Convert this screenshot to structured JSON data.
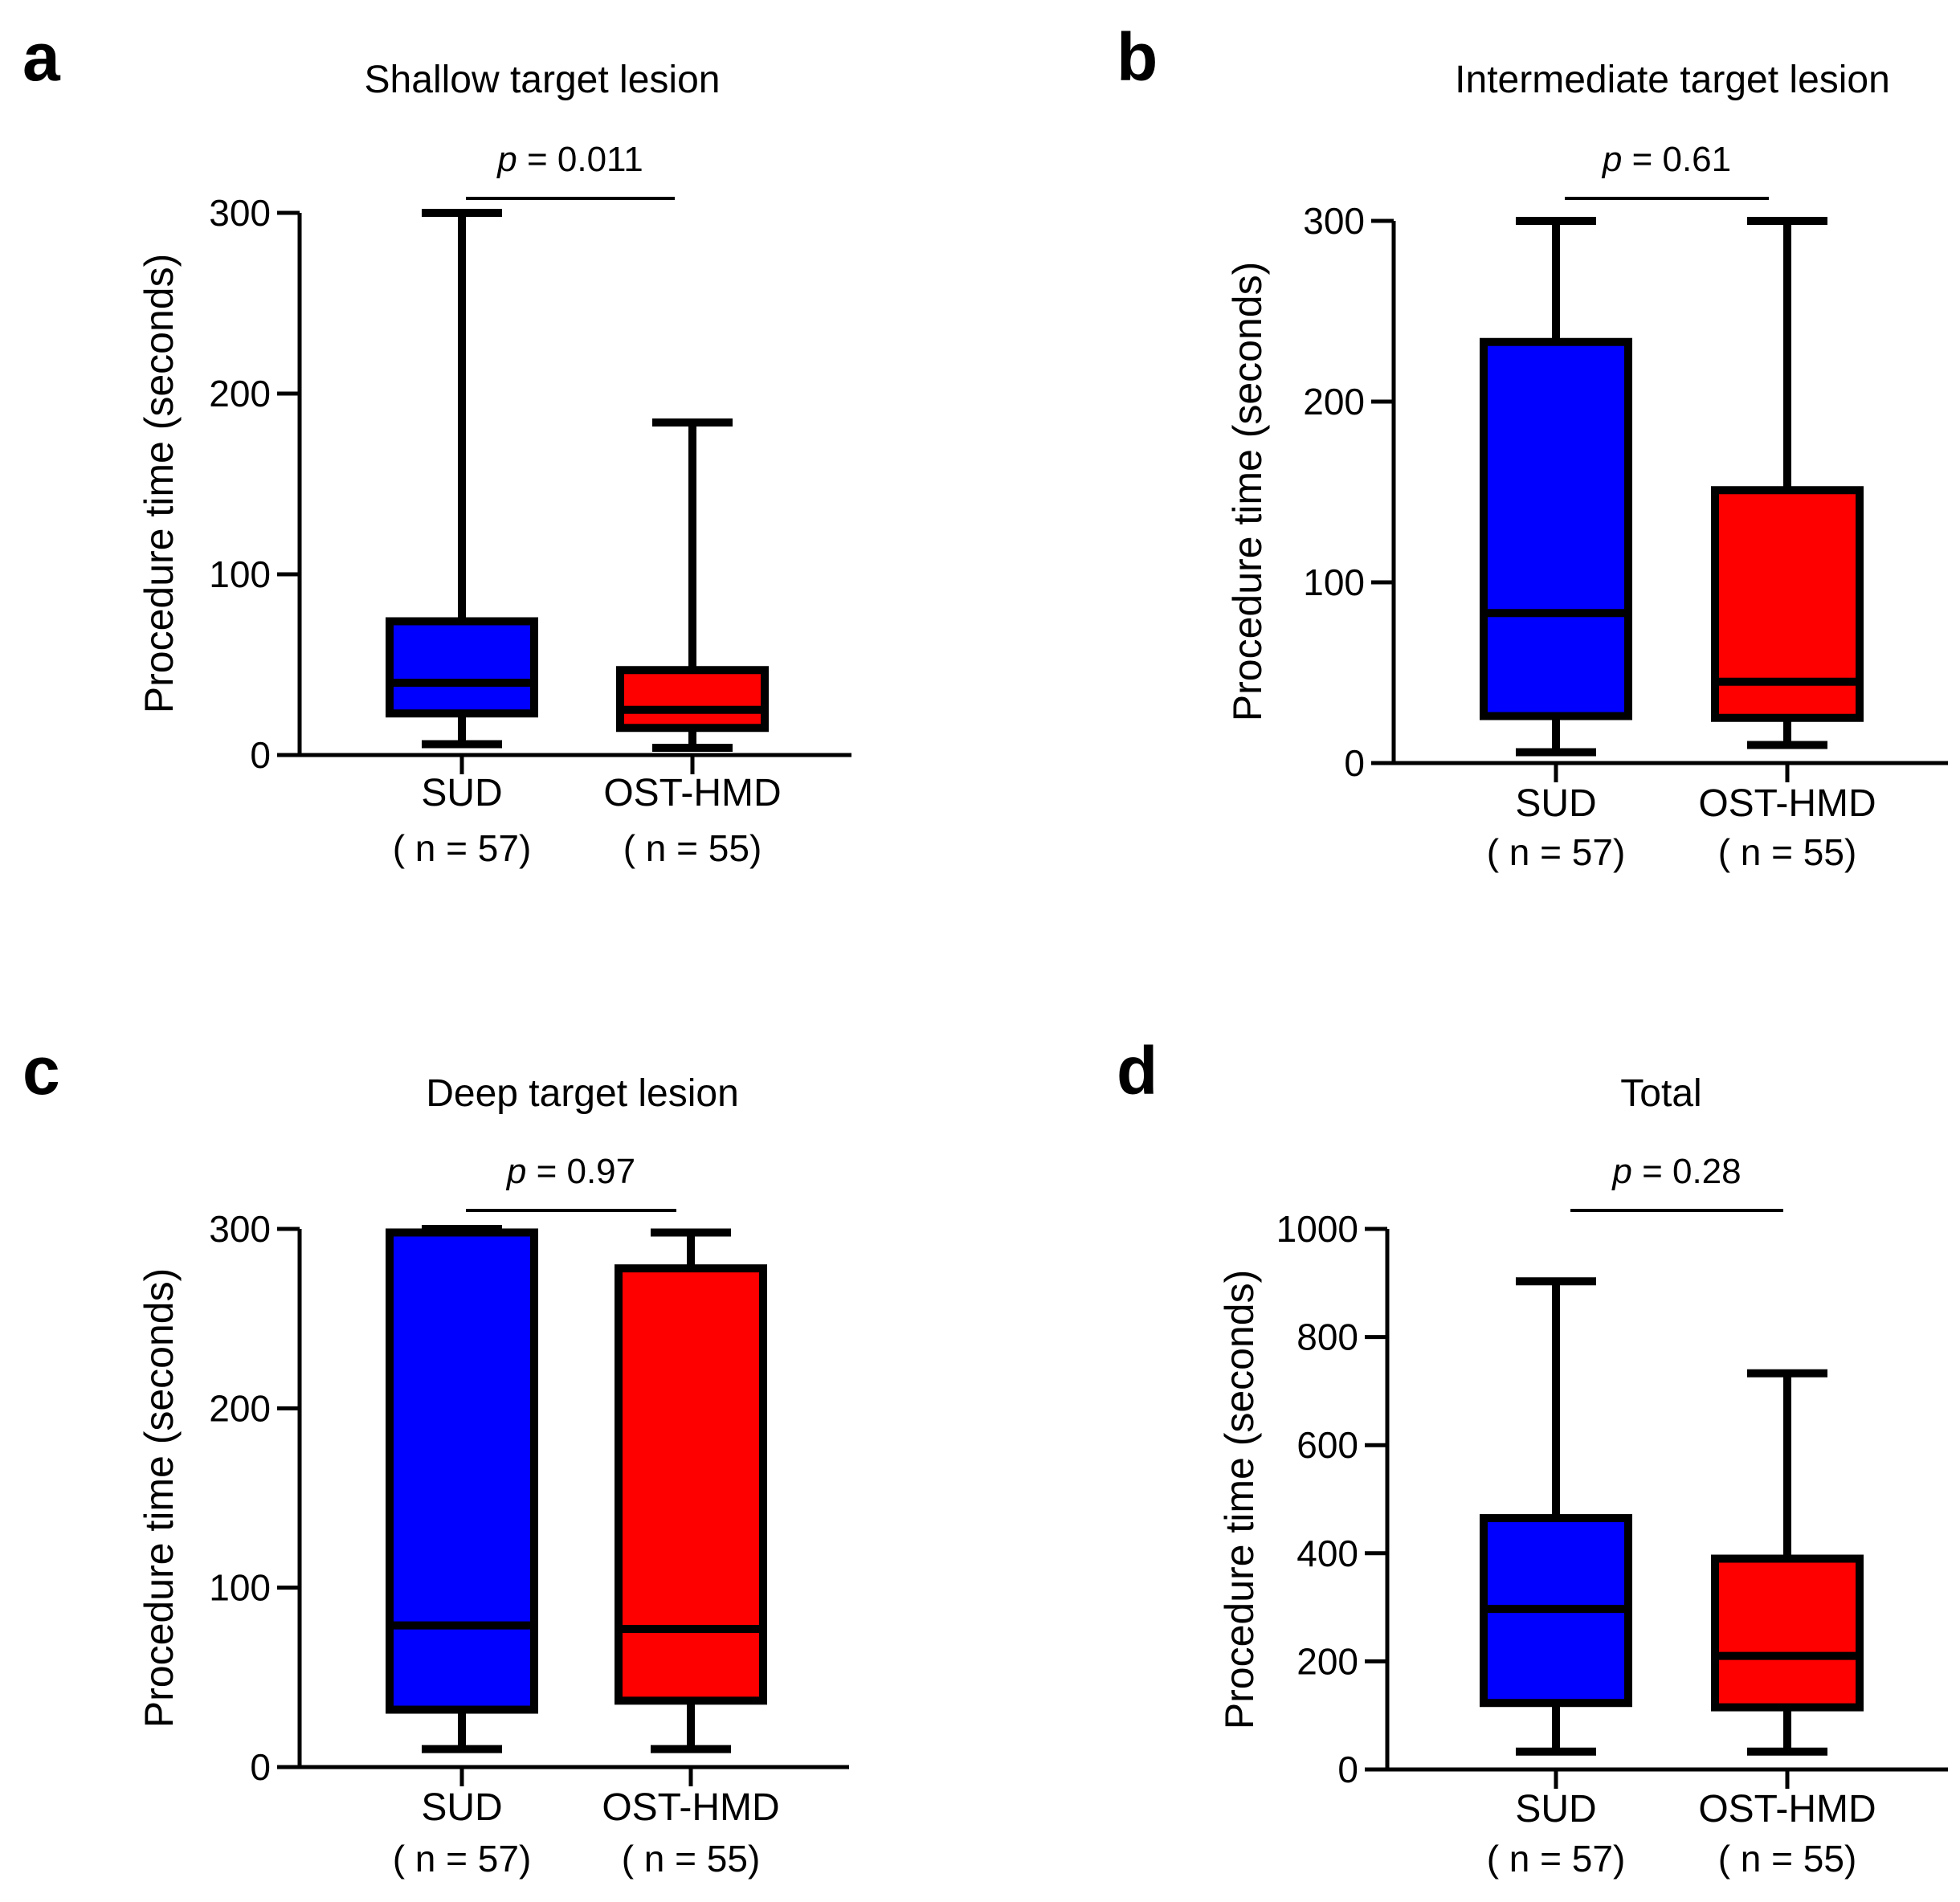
{
  "figure": {
    "colors": {
      "sud": "#0000ff",
      "ost_hmd": "#ff0000",
      "ink": "#000000"
    }
  },
  "chart_data": [
    {
      "panel": "a",
      "type": "box",
      "title": "Shallow target lesion",
      "ylabel": "Procedure time (seconds)",
      "ylim": [
        0,
        300
      ],
      "yticks": [
        0,
        100,
        200,
        300
      ],
      "p_prefix": "p",
      "p_text": " = 0.011",
      "groups": [
        {
          "name": "SUD",
          "n_label": "( n = 57)",
          "min": 6,
          "q1": 23,
          "median": 40,
          "q3": 74,
          "max": 300
        },
        {
          "name": "OST-HMD",
          "n_label": "( n = 55)",
          "min": 4,
          "q1": 15,
          "median": 25,
          "q3": 47,
          "max": 184
        }
      ]
    },
    {
      "panel": "b",
      "type": "box",
      "title": "Intermediate target lesion",
      "ylabel": "Procedure time (seconds)",
      "ylim": [
        0,
        300
      ],
      "yticks": [
        0,
        100,
        200,
        300
      ],
      "p_prefix": "p",
      "p_text": " = 0.61",
      "groups": [
        {
          "name": "SUD",
          "n_label": "( n = 57)",
          "min": 6,
          "q1": 26,
          "median": 83,
          "q3": 233,
          "max": 300
        },
        {
          "name": "OST-HMD",
          "n_label": "( n = 55)",
          "min": 10,
          "q1": 25,
          "median": 45,
          "q3": 151,
          "max": 300
        }
      ]
    },
    {
      "panel": "c",
      "type": "box",
      "title": "Deep target lesion",
      "ylabel": "Procedure time (seconds)",
      "ylim": [
        0,
        300
      ],
      "yticks": [
        0,
        100,
        200,
        300
      ],
      "p_prefix": "p",
      "p_text": " = 0.97",
      "groups": [
        {
          "name": "SUD",
          "n_label": "( n = 57)",
          "min": 10,
          "q1": 32,
          "median": 79,
          "q3": 298,
          "max": 300
        },
        {
          "name": "OST-HMD",
          "n_label": "( n = 55)",
          "min": 10,
          "q1": 37,
          "median": 77,
          "q3": 278,
          "max": 298
        }
      ]
    },
    {
      "panel": "d",
      "type": "box",
      "title": "Total",
      "ylabel": "Procedure time (seconds)",
      "ylim": [
        0,
        1000
      ],
      "yticks": [
        0,
        200,
        400,
        600,
        800,
        1000
      ],
      "p_prefix": "p",
      "p_text": " = 0.28",
      "groups": [
        {
          "name": "SUD",
          "n_label": "( n = 57)",
          "min": 33,
          "q1": 123,
          "median": 297,
          "q3": 465,
          "max": 903
        },
        {
          "name": "OST-HMD",
          "n_label": "( n = 55)",
          "min": 33,
          "q1": 115,
          "median": 210,
          "q3": 390,
          "max": 733
        }
      ]
    }
  ]
}
